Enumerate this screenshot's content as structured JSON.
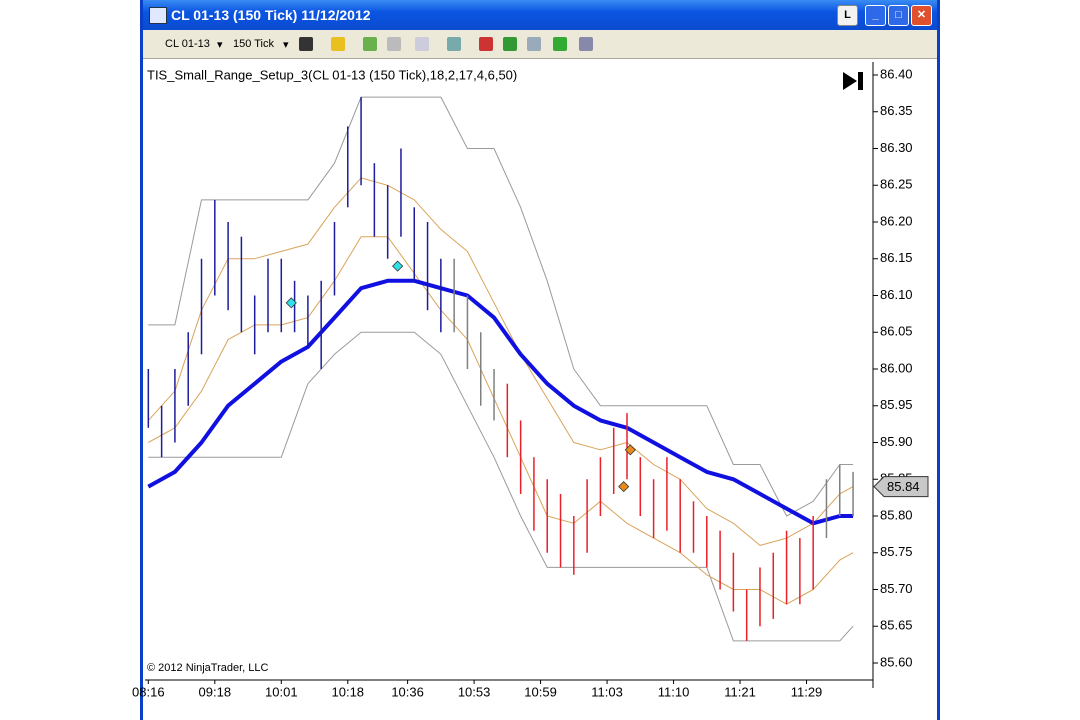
{
  "window": {
    "title": "CL 01-13 (150 Tick)  11/12/2012",
    "layout_button": "L"
  },
  "toolbar": {
    "instrument": "CL 01-13",
    "interval": "150 Tick"
  },
  "chart_data": {
    "type": "bar",
    "title": "TIS_Small_Range_Setup_3(CL 01-13 (150 Tick),18,2,17,4,6,50)",
    "copyright": "© 2012 NinjaTrader, LLC",
    "last_price": 85.84,
    "ylim": [
      85.6,
      86.4
    ],
    "yticks": [
      {
        "value": 85.6,
        "label": "85.60"
      },
      85.65,
      {
        "value": 85.7,
        "label": "85.70"
      },
      85.75,
      {
        "value": 85.8,
        "label": "85.80"
      },
      85.85,
      {
        "value": 85.9,
        "label": "85.90"
      },
      85.95,
      {
        "value": 86.0,
        "label": "86.00"
      },
      86.05,
      {
        "value": 86.1,
        "label": "86.10"
      },
      86.15,
      {
        "value": 86.2,
        "label": "86.20"
      },
      86.25,
      {
        "value": 86.3,
        "label": "86.30"
      },
      86.35,
      {
        "value": 86.4,
        "label": "86.40"
      }
    ],
    "xlim": [
      -0.5,
      109
    ],
    "xticks": [
      {
        "value": 0,
        "label": "08:16"
      },
      {
        "value": 10,
        "label": "09:18"
      },
      {
        "value": 20,
        "label": "10:01"
      },
      {
        "value": 30,
        "label": "10:18"
      },
      {
        "value": 39,
        "label": "10:36"
      },
      {
        "value": 49,
        "label": "10:53"
      },
      {
        "value": 59,
        "label": "10:59"
      },
      {
        "value": 69,
        "label": "11:03"
      },
      {
        "value": 79,
        "label": "11:10"
      },
      {
        "value": 89,
        "label": "11:21"
      },
      {
        "value": 99,
        "label": "11:29"
      }
    ],
    "bar_groups": [
      {
        "color": "#1c1c9c",
        "x": [
          0,
          2,
          4,
          6,
          8,
          10,
          12,
          14,
          16,
          18,
          20,
          22,
          24,
          26,
          28,
          30,
          32,
          34,
          36,
          38,
          40,
          42,
          44
        ],
        "high": [
          86.0,
          85.95,
          86.0,
          86.05,
          86.15,
          86.23,
          86.2,
          86.18,
          86.1,
          86.15,
          86.15,
          86.12,
          86.1,
          86.12,
          86.2,
          86.33,
          86.37,
          86.28,
          86.25,
          86.3,
          86.22,
          86.2,
          86.15
        ],
        "low": [
          85.92,
          85.88,
          85.9,
          85.95,
          86.02,
          86.1,
          86.08,
          86.05,
          86.02,
          86.05,
          86.05,
          86.05,
          86.03,
          86.0,
          86.1,
          86.22,
          86.25,
          86.18,
          86.15,
          86.18,
          86.12,
          86.08,
          86.05
        ]
      },
      {
        "color": "#808080",
        "x": [
          46,
          48,
          50,
          52,
          102,
          104,
          106
        ],
        "high": [
          86.15,
          86.1,
          86.05,
          86.0,
          85.85,
          85.87,
          85.86
        ],
        "low": [
          86.05,
          86.0,
          85.95,
          85.93,
          85.77,
          85.8,
          85.8
        ]
      },
      {
        "color": "#e8202a",
        "x": [
          54,
          56,
          58,
          60,
          62,
          64,
          66,
          68,
          70,
          72,
          74,
          76,
          78,
          80,
          82,
          84,
          86,
          88,
          90,
          92,
          94,
          96,
          98,
          100
        ],
        "high": [
          85.98,
          85.93,
          85.88,
          85.85,
          85.83,
          85.8,
          85.85,
          85.88,
          85.92,
          85.94,
          85.88,
          85.85,
          85.88,
          85.85,
          85.82,
          85.8,
          85.78,
          85.75,
          85.7,
          85.73,
          85.75,
          85.78,
          85.77,
          85.8
        ],
        "low": [
          85.88,
          85.83,
          85.78,
          85.75,
          85.73,
          85.72,
          85.75,
          85.8,
          85.83,
          85.85,
          85.8,
          85.77,
          85.78,
          85.75,
          85.75,
          85.73,
          85.7,
          85.67,
          85.63,
          85.65,
          85.66,
          85.68,
          85.68,
          85.7
        ]
      }
    ],
    "lines": [
      {
        "color": "#9a9a9a",
        "width": 1,
        "x": [
          0,
          4,
          8,
          12,
          16,
          20,
          24,
          28,
          32,
          36,
          40,
          44,
          48,
          52,
          56,
          60,
          64,
          68,
          72,
          76,
          80,
          84,
          88,
          92,
          96,
          100,
          104,
          106
        ],
        "values": [
          86.06,
          86.06,
          86.23,
          86.23,
          86.23,
          86.23,
          86.23,
          86.28,
          86.37,
          86.37,
          86.37,
          86.37,
          86.3,
          86.3,
          86.22,
          86.12,
          86.0,
          85.95,
          85.95,
          85.95,
          85.95,
          85.95,
          85.87,
          85.87,
          85.8,
          85.82,
          85.87,
          85.87
        ]
      },
      {
        "color": "#9a9a9a",
        "width": 1,
        "x": [
          0,
          4,
          8,
          12,
          16,
          20,
          24,
          28,
          32,
          36,
          40,
          44,
          48,
          52,
          56,
          60,
          64,
          68,
          72,
          76,
          80,
          84,
          88,
          92,
          96,
          100,
          104,
          106
        ],
        "values": [
          85.88,
          85.88,
          85.88,
          85.88,
          85.88,
          85.88,
          85.98,
          86.02,
          86.05,
          86.05,
          86.05,
          86.02,
          85.95,
          85.88,
          85.8,
          85.73,
          85.73,
          85.73,
          85.73,
          85.73,
          85.73,
          85.73,
          85.63,
          85.63,
          85.63,
          85.63,
          85.63,
          85.65
        ]
      },
      {
        "color": "#d9a35a",
        "width": 1,
        "x": [
          0,
          4,
          8,
          12,
          16,
          20,
          24,
          28,
          32,
          36,
          40,
          44,
          48,
          52,
          56,
          60,
          64,
          68,
          72,
          76,
          80,
          84,
          88,
          92,
          96,
          100,
          104,
          106
        ],
        "values": [
          85.93,
          85.97,
          86.08,
          86.15,
          86.15,
          86.16,
          86.17,
          86.22,
          86.26,
          86.25,
          86.23,
          86.19,
          86.16,
          86.09,
          86.02,
          85.96,
          85.9,
          85.89,
          85.9,
          85.87,
          85.85,
          85.81,
          85.79,
          85.76,
          85.77,
          85.79,
          85.83,
          85.84
        ]
      },
      {
        "color": "#d9a35a",
        "width": 1,
        "x": [
          0,
          4,
          8,
          12,
          16,
          20,
          24,
          28,
          32,
          36,
          40,
          44,
          48,
          52,
          56,
          60,
          64,
          68,
          72,
          76,
          80,
          84,
          88,
          92,
          96,
          100,
          104,
          106
        ],
        "values": [
          85.9,
          85.92,
          85.97,
          86.04,
          86.06,
          86.06,
          86.07,
          86.12,
          86.18,
          86.18,
          86.13,
          86.08,
          86.04,
          85.96,
          85.88,
          85.8,
          85.79,
          85.82,
          85.79,
          85.77,
          85.75,
          85.72,
          85.7,
          85.7,
          85.68,
          85.7,
          85.74,
          85.75
        ]
      },
      {
        "color": "#1010e0",
        "width": 4,
        "x": [
          0,
          4,
          8,
          12,
          16,
          20,
          24,
          28,
          32,
          36,
          40,
          44,
          48,
          52,
          56,
          60,
          64,
          68,
          72,
          76,
          80,
          84,
          88,
          92,
          96,
          100,
          104,
          106
        ],
        "values": [
          85.84,
          85.86,
          85.9,
          85.95,
          85.98,
          86.01,
          86.03,
          86.07,
          86.11,
          86.12,
          86.12,
          86.11,
          86.1,
          86.07,
          86.02,
          85.98,
          85.95,
          85.93,
          85.92,
          85.9,
          85.88,
          85.86,
          85.85,
          85.83,
          85.81,
          85.79,
          85.8,
          85.8
        ]
      }
    ],
    "markers": [
      {
        "color": "#2ee0e8",
        "x": 21.5,
        "value": 86.09
      },
      {
        "color": "#2ee0e8",
        "x": 37.5,
        "value": 86.14
      },
      {
        "color": "#e88a1a",
        "x": 71.5,
        "value": 85.84
      },
      {
        "color": "#e88a1a",
        "x": 72.5,
        "value": 85.89
      }
    ]
  }
}
